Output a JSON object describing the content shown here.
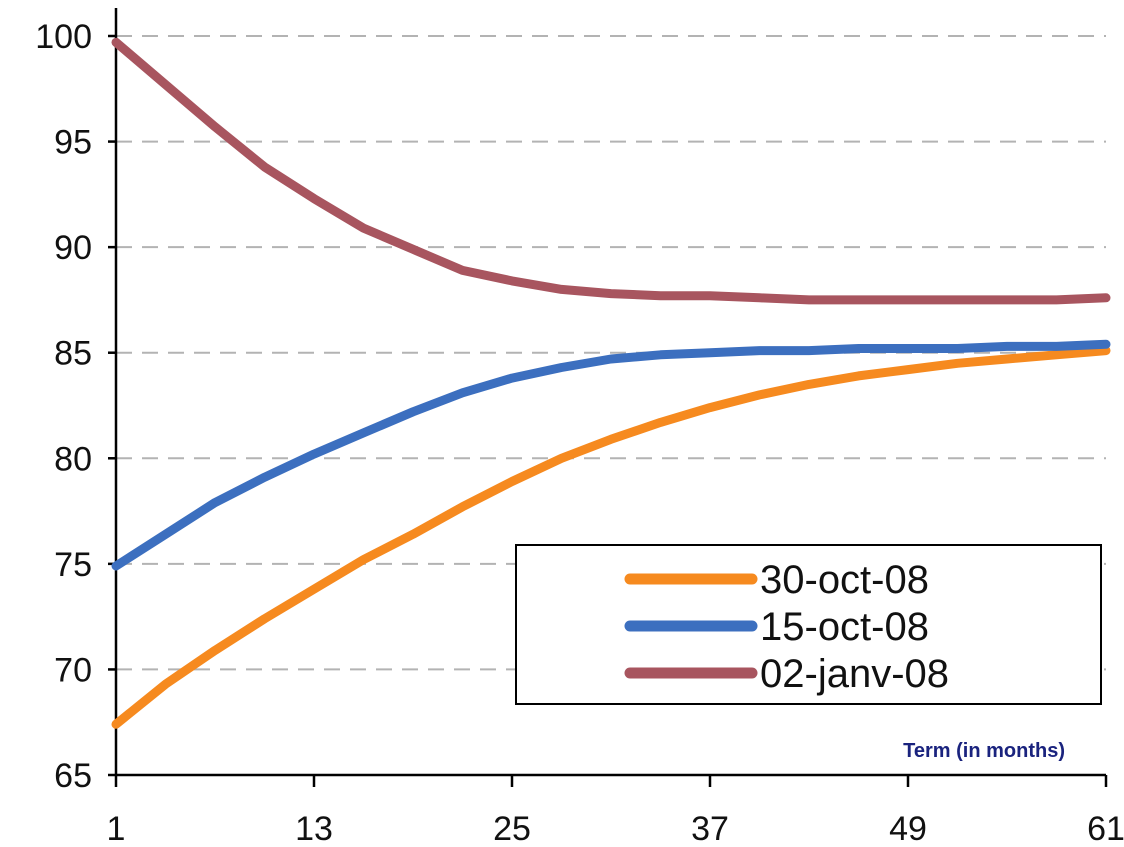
{
  "chart_data": {
    "type": "line",
    "title": "",
    "xlabel": "Term (in months)",
    "ylabel": "",
    "xlim": [
      1,
      61
    ],
    "ylim": [
      65,
      100
    ],
    "xticks": [
      1,
      13,
      25,
      37,
      49,
      61
    ],
    "yticks": [
      65,
      70,
      75,
      80,
      85,
      90,
      95,
      100
    ],
    "grid": "horizontal dashed",
    "legend_position": "lower-right",
    "x": [
      1,
      4,
      7,
      10,
      13,
      16,
      19,
      22,
      25,
      28,
      31,
      34,
      37,
      40,
      43,
      46,
      49,
      52,
      55,
      58,
      61
    ],
    "series": [
      {
        "name": "30-oct-08",
        "color": "#f68a1f",
        "values": [
          67.4,
          69.3,
          70.9,
          72.4,
          73.8,
          75.2,
          76.4,
          77.7,
          78.9,
          80.0,
          80.9,
          81.7,
          82.4,
          83.0,
          83.5,
          83.9,
          84.2,
          84.5,
          84.7,
          84.9,
          85.1
        ]
      },
      {
        "name": "15-oct-08",
        "color": "#3c6fbf",
        "values": [
          74.9,
          76.4,
          77.9,
          79.1,
          80.2,
          81.2,
          82.2,
          83.1,
          83.8,
          84.3,
          84.7,
          84.9,
          85.0,
          85.1,
          85.1,
          85.2,
          85.2,
          85.2,
          85.3,
          85.3,
          85.4
        ]
      },
      {
        "name": "02-janv-08",
        "color": "#a8555f",
        "values": [
          99.7,
          97.7,
          95.7,
          93.8,
          92.3,
          90.9,
          89.9,
          88.9,
          88.4,
          88.0,
          87.8,
          87.7,
          87.7,
          87.6,
          87.5,
          87.5,
          87.5,
          87.5,
          87.5,
          87.5,
          87.6
        ]
      }
    ]
  }
}
